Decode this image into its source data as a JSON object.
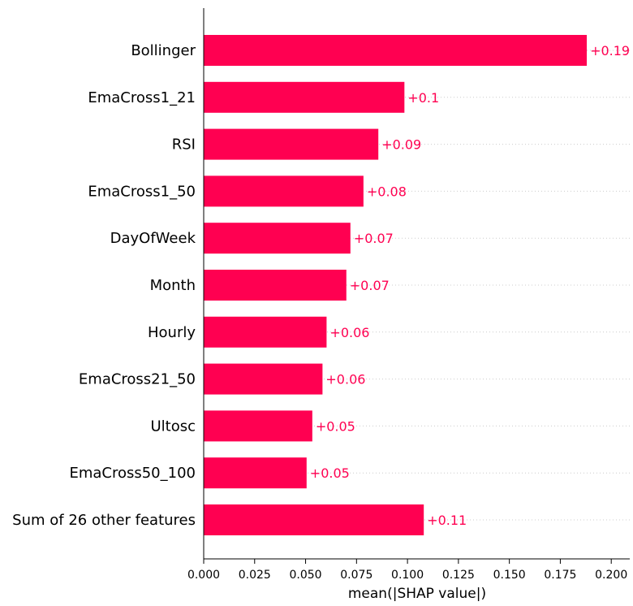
{
  "chart_data": {
    "type": "bar",
    "orientation": "horizontal",
    "categories": [
      "Bollinger",
      "EmaCross1_21",
      "RSI",
      "EmaCross1_50",
      "DayOfWeek",
      "Month",
      "Hourly",
      "EmaCross21_50",
      "Ultosc",
      "EmaCross50_100",
      "Sum of 26 other features"
    ],
    "values": [
      0.188,
      0.0985,
      0.0857,
      0.0784,
      0.072,
      0.07,
      0.0603,
      0.0583,
      0.0533,
      0.0505,
      0.108
    ],
    "value_labels": [
      "+0.19",
      "+0.1",
      "+0.09",
      "+0.08",
      "+0.07",
      "+0.07",
      "+0.06",
      "+0.06",
      "+0.05",
      "+0.05",
      "+0.11"
    ],
    "xlabel": "mean(|SHAP value|)",
    "xticks": [
      "0.000",
      "0.025",
      "0.050",
      "0.075",
      "0.100",
      "0.125",
      "0.150",
      "0.175",
      "0.200"
    ],
    "xtick_values": [
      0,
      0.025,
      0.05,
      0.075,
      0.1,
      0.125,
      0.15,
      0.175,
      0.2
    ],
    "xlim": [
      0,
      0.209
    ],
    "grid": "dotted row guides",
    "bar_color": "#ff0051",
    "label_color": "#ff0051"
  }
}
